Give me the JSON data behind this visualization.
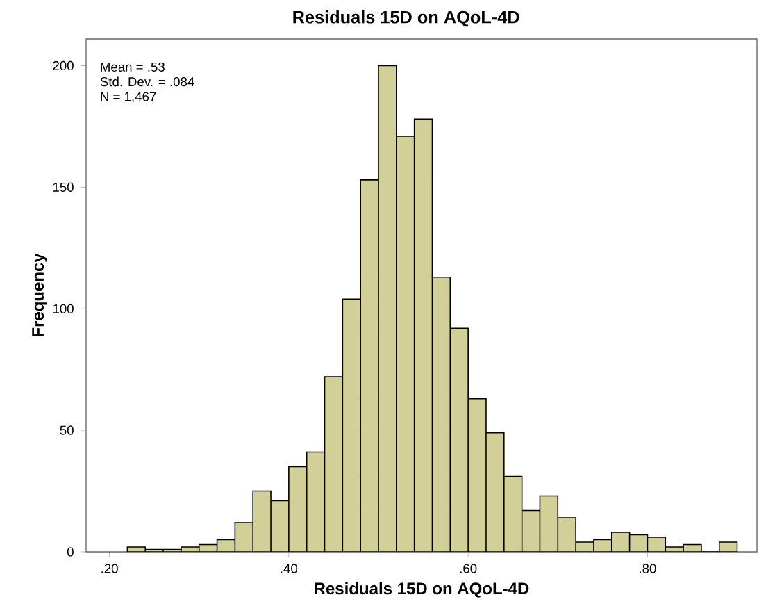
{
  "chart_data": {
    "type": "histogram",
    "title": "Residuals 15D on AQoL-4D",
    "xlabel": "Residuals 15D on AQoL-4D",
    "ylabel": "Frequency",
    "annotations": [
      "Mean = .53",
      "Std. Dev. = .084",
      "N = 1,467"
    ],
    "bins": [
      0.22,
      0.24,
      0.26,
      0.28,
      0.3,
      0.32,
      0.34,
      0.36,
      0.38,
      0.4,
      0.42,
      0.44,
      0.46,
      0.48,
      0.5,
      0.52,
      0.54,
      0.56,
      0.58,
      0.6,
      0.62,
      0.64,
      0.66,
      0.68,
      0.7,
      0.72,
      0.74,
      0.76,
      0.78,
      0.8,
      0.82,
      0.84,
      0.86,
      0.88,
      0.9
    ],
    "values": [
      2,
      1,
      1,
      2,
      3,
      5,
      12,
      25,
      21,
      35,
      41,
      72,
      104,
      153,
      200,
      171,
      178,
      113,
      92,
      63,
      49,
      31,
      17,
      23,
      14,
      4,
      5,
      8,
      7,
      6,
      2,
      3,
      0,
      4
    ],
    "color": "#d3cf99",
    "xlim": [
      0.174,
      0.922
    ],
    "ylim": [
      0,
      211
    ],
    "xticks": [
      {
        "value": 0.2,
        "label": ".20"
      },
      {
        "value": 0.4,
        "label": ".40"
      },
      {
        "value": 0.6,
        "label": ".60"
      },
      {
        "value": 0.8,
        "label": ".80"
      }
    ],
    "yticks": [
      0,
      50,
      100,
      150,
      200
    ],
    "grid": false
  }
}
